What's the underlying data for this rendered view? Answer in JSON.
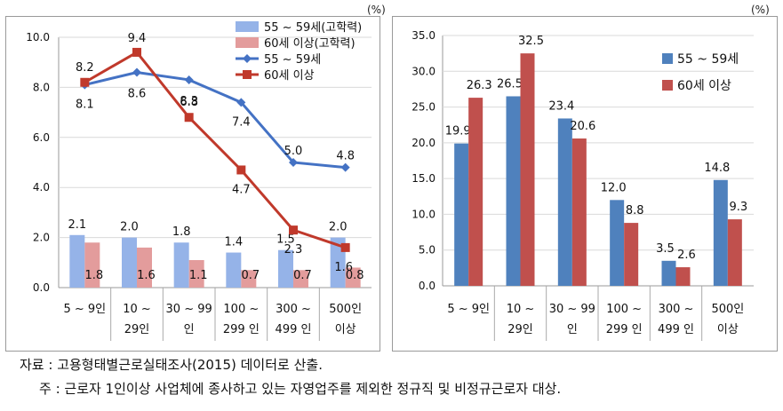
{
  "source_label": "자료 : 고용형태별근로실태조사(2015) 데이터로 산출.",
  "note_label": "주 : 근로자 1인이상 사업체에 종사하고 있는 자영업주를 제외한 정규직 및 비정규근로자 대상.",
  "colors": {
    "blue_line": "#4472c4",
    "red_line": "#c0392b",
    "light_blue": "#95b3e8",
    "light_red": "#e39c9c",
    "blue_bar": "#4f81bd",
    "red_bar": "#c0504d"
  },
  "chart_data": [
    {
      "type": "bar+line",
      "unit": "(%)",
      "categories": [
        [
          "5 ~ 9인"
        ],
        [
          "10 ~",
          "29인"
        ],
        [
          "30 ~ 99",
          "인"
        ],
        [
          "100 ~",
          "299 인"
        ],
        [
          "300 ~",
          "499 인"
        ],
        [
          "500인",
          "이상"
        ]
      ],
      "ylim": [
        0,
        10
      ],
      "yticks": [
        "0.0",
        "2.0",
        "4.0",
        "6.0",
        "8.0",
        "10.0"
      ],
      "series": [
        {
          "name": "55 ~ 59세(고학력)",
          "kind": "bar",
          "values": [
            2.1,
            2.0,
            1.8,
            1.4,
            1.5,
            2.0
          ],
          "labels": [
            "2.1",
            "2.0",
            "1.8",
            "1.4",
            "1.5",
            "2.0"
          ]
        },
        {
          "name": "60세 이상(고학력)",
          "kind": "bar",
          "values": [
            1.8,
            1.6,
            1.1,
            0.7,
            0.7,
            0.8
          ],
          "labels": [
            "1.8",
            "1.6",
            "1.1",
            "0.7",
            "0.7",
            "0.8"
          ]
        },
        {
          "name": "55 ~ 59세",
          "kind": "line",
          "values": [
            8.1,
            8.6,
            8.3,
            7.4,
            5.0,
            4.8
          ],
          "labels": [
            "8.1",
            "8.6",
            "8.3",
            "7.4",
            "5.0",
            "4.8"
          ]
        },
        {
          "name": "60세 이상",
          "kind": "line",
          "values": [
            8.2,
            9.4,
            6.8,
            4.7,
            2.3,
            1.6
          ],
          "labels": [
            "8.2",
            "9.4",
            "6.8",
            "4.7",
            "2.3",
            "1.6"
          ]
        }
      ],
      "legend": "top-right"
    },
    {
      "type": "bar",
      "unit": "(%)",
      "categories": [
        [
          "5 ~ 9인"
        ],
        [
          "10 ~",
          "29인"
        ],
        [
          "30 ~ 99",
          "인"
        ],
        [
          "100 ~",
          "299 인"
        ],
        [
          "300 ~",
          "499 인"
        ],
        [
          "500인",
          "이상"
        ]
      ],
      "ylim": [
        0,
        35
      ],
      "yticks": [
        "0.0",
        "5.0",
        "10.0",
        "15.0",
        "20.0",
        "25.0",
        "30.0",
        "35.0"
      ],
      "series": [
        {
          "name": "55 ~ 59세",
          "values": [
            19.9,
            26.5,
            23.4,
            12.0,
            3.5,
            14.8
          ],
          "labels": [
            "19.9",
            "26.5",
            "23.4",
            "12.0",
            "3.5",
            "14.8"
          ]
        },
        {
          "name": "60세 이상",
          "values": [
            26.3,
            32.5,
            20.6,
            8.8,
            2.6,
            9.3
          ],
          "labels": [
            "26.3",
            "32.5",
            "20.6",
            "8.8",
            "2.6",
            "9.3"
          ]
        }
      ],
      "legend": "top-right"
    }
  ]
}
